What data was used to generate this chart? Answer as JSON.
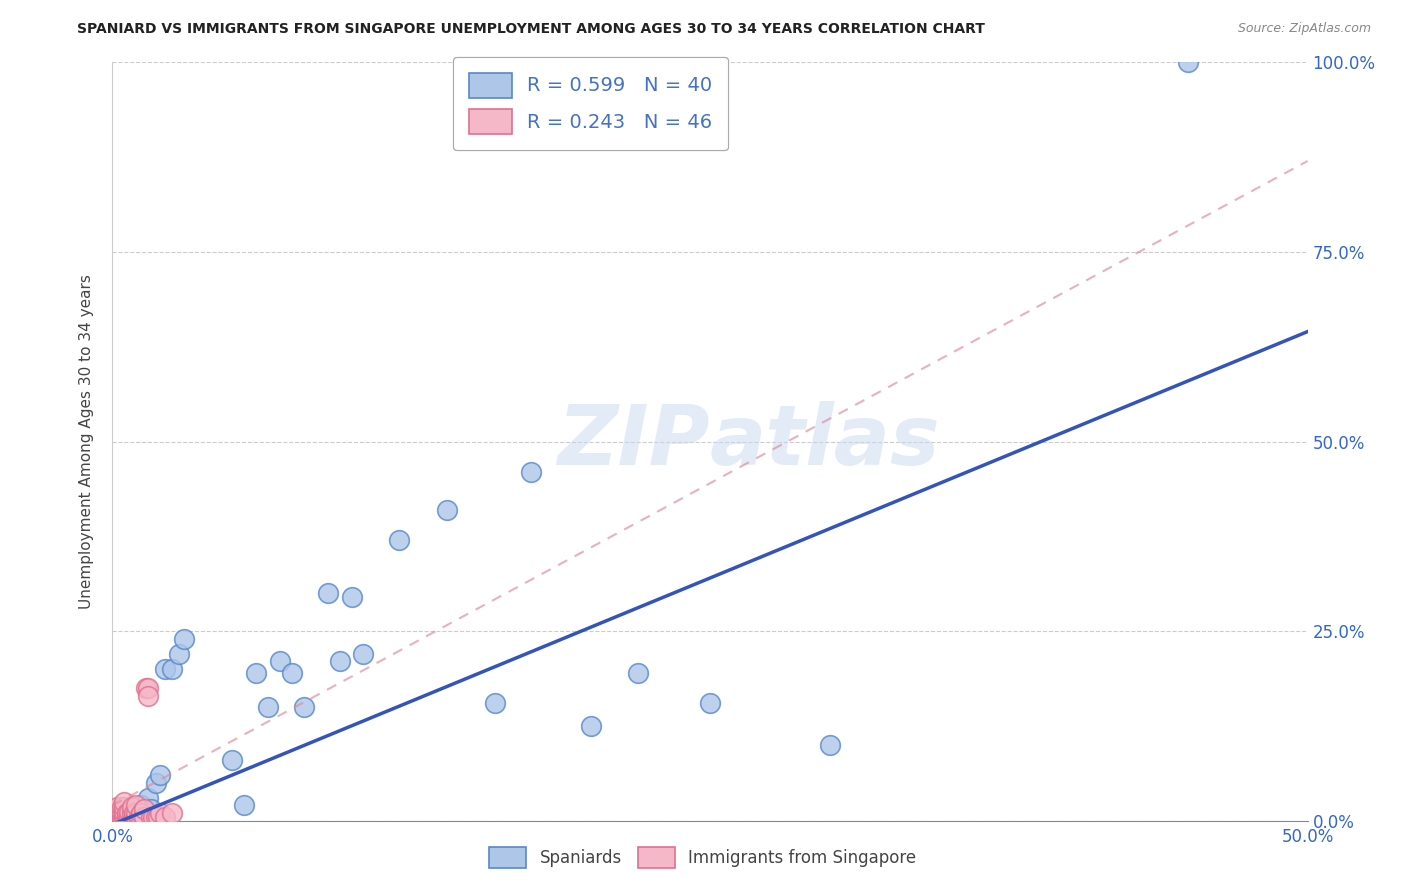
{
  "title": "SPANIARD VS IMMIGRANTS FROM SINGAPORE UNEMPLOYMENT AMONG AGES 30 TO 34 YEARS CORRELATION CHART",
  "source": "Source: ZipAtlas.com",
  "ylabel": "Unemployment Among Ages 30 to 34 years",
  "xlim": [
    0.0,
    0.5
  ],
  "ylim": [
    0.0,
    1.0
  ],
  "xticks": [
    0.0,
    0.1,
    0.2,
    0.3,
    0.4,
    0.5
  ],
  "yticks": [
    0.0,
    0.25,
    0.5,
    0.75,
    1.0
  ],
  "xtick_labels": [
    "0.0%",
    "",
    "",
    "",
    "",
    "50.0%"
  ],
  "ytick_labels_right": [
    "0.0%",
    "25.0%",
    "50.0%",
    "75.0%",
    "100.0%"
  ],
  "watermark": "ZIPatlas",
  "legend_R1": "R = 0.599",
  "legend_N1": "N = 40",
  "legend_R2": "R = 0.243",
  "legend_N2": "N = 46",
  "spaniards_color": "#aec6e8",
  "singapore_color": "#f4b8c8",
  "spaniards_edge": "#5588cc",
  "singapore_edge": "#e07090",
  "trendline_blue": "#3355bb",
  "trendline_pink": "#dd8899",
  "spaniards_x": [
    0.002,
    0.003,
    0.004,
    0.005,
    0.006,
    0.007,
    0.008,
    0.009,
    0.01,
    0.011,
    0.012,
    0.013,
    0.015,
    0.016,
    0.018,
    0.02,
    0.022,
    0.025,
    0.028,
    0.03,
    0.05,
    0.055,
    0.06,
    0.065,
    0.07,
    0.075,
    0.08,
    0.09,
    0.095,
    0.1,
    0.105,
    0.12,
    0.14,
    0.16,
    0.175,
    0.2,
    0.22,
    0.25,
    0.3,
    0.45
  ],
  "spaniards_y": [
    0.005,
    0.005,
    0.008,
    0.01,
    0.008,
    0.01,
    0.012,
    0.008,
    0.015,
    0.012,
    0.02,
    0.015,
    0.03,
    0.015,
    0.05,
    0.06,
    0.2,
    0.2,
    0.22,
    0.24,
    0.08,
    0.02,
    0.195,
    0.15,
    0.21,
    0.195,
    0.15,
    0.3,
    0.21,
    0.295,
    0.22,
    0.37,
    0.41,
    0.155,
    0.46,
    0.125,
    0.195,
    0.155,
    0.1,
    1.0
  ],
  "singapore_x": [
    0.001,
    0.001,
    0.001,
    0.001,
    0.002,
    0.002,
    0.002,
    0.002,
    0.003,
    0.003,
    0.003,
    0.004,
    0.004,
    0.004,
    0.005,
    0.005,
    0.005,
    0.005,
    0.005,
    0.006,
    0.006,
    0.007,
    0.007,
    0.008,
    0.008,
    0.008,
    0.009,
    0.009,
    0.01,
    0.01,
    0.01,
    0.011,
    0.012,
    0.012,
    0.013,
    0.013,
    0.014,
    0.015,
    0.015,
    0.016,
    0.017,
    0.018,
    0.019,
    0.02,
    0.022,
    0.025
  ],
  "singapore_y": [
    0.005,
    0.008,
    0.01,
    0.015,
    0.005,
    0.008,
    0.01,
    0.018,
    0.005,
    0.008,
    0.012,
    0.005,
    0.01,
    0.018,
    0.005,
    0.008,
    0.012,
    0.018,
    0.025,
    0.005,
    0.01,
    0.005,
    0.012,
    0.005,
    0.01,
    0.018,
    0.005,
    0.01,
    0.005,
    0.01,
    0.02,
    0.005,
    0.005,
    0.01,
    0.005,
    0.015,
    0.175,
    0.175,
    0.165,
    0.005,
    0.005,
    0.005,
    0.005,
    0.01,
    0.005,
    0.01
  ],
  "background_color": "#ffffff",
  "grid_color": "#cccccc",
  "trendline_blue_slope": 1.3,
  "trendline_blue_intercept": -0.005,
  "trendline_pink_slope": 1.7,
  "trendline_pink_intercept": 0.02
}
